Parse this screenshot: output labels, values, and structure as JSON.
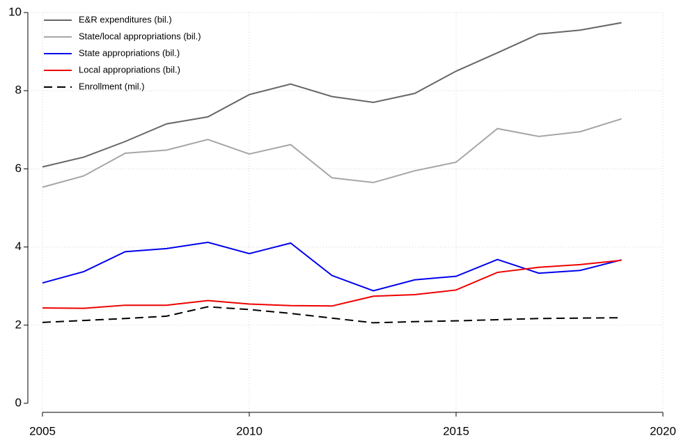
{
  "chart_data": {
    "type": "line",
    "x": [
      2005,
      2006,
      2007,
      2008,
      2009,
      2010,
      2011,
      2012,
      2013,
      2014,
      2015,
      2016,
      2017,
      2018,
      2019
    ],
    "series": [
      {
        "name": "E&R expenditures (bil.)",
        "color": "#666666",
        "values": [
          6.05,
          6.3,
          6.7,
          7.15,
          7.33,
          7.9,
          8.17,
          7.85,
          7.7,
          7.93,
          8.5,
          8.97,
          9.45,
          9.55,
          9.74
        ]
      },
      {
        "name": "State/local appropriations (bil.)",
        "color": "#a6a6a6",
        "values": [
          5.53,
          5.82,
          6.4,
          6.48,
          6.75,
          6.38,
          6.62,
          5.77,
          5.65,
          5.95,
          6.17,
          7.03,
          6.83,
          6.95,
          7.28
        ]
      },
      {
        "name": "State appropriations (bil.)",
        "color": "#0000ee",
        "values": [
          3.08,
          3.37,
          3.88,
          3.96,
          4.12,
          3.83,
          4.1,
          3.27,
          2.88,
          3.16,
          3.25,
          3.68,
          3.33,
          3.4,
          3.67
        ]
      },
      {
        "name": "Local appropriations (bil.)",
        "color": "#ee0000",
        "values": [
          2.44,
          2.43,
          2.51,
          2.51,
          2.63,
          2.54,
          2.5,
          2.49,
          2.74,
          2.78,
          2.9,
          3.35,
          3.48,
          3.55,
          3.66
        ]
      },
      {
        "name": "Enrollment (mil.)",
        "color": "#000000",
        "dash": true,
        "values": [
          2.07,
          2.12,
          2.17,
          2.23,
          2.47,
          2.4,
          2.3,
          2.18,
          2.06,
          2.09,
          2.11,
          2.14,
          2.17,
          2.18,
          2.19
        ]
      }
    ],
    "xlim": [
      2005,
      2020
    ],
    "xticks": [
      2005,
      2010,
      2015,
      2020
    ],
    "ylim": [
      0,
      10
    ],
    "yticks": [
      0,
      2,
      4,
      6,
      8,
      10
    ],
    "grid": true,
    "legend": "upper left"
  }
}
